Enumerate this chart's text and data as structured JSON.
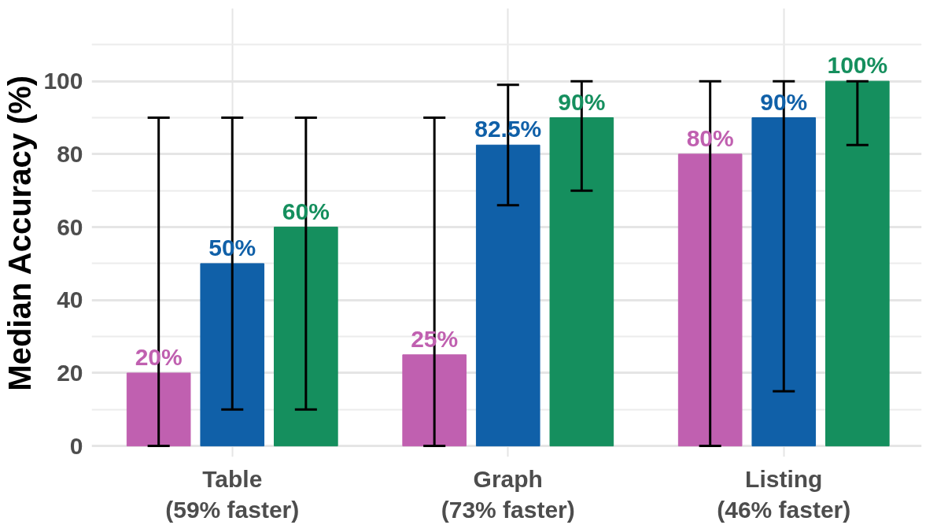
{
  "chart_data": {
    "type": "bar",
    "ylabel": "Median Accuracy (%)",
    "categories": [
      "Table\n(59% faster)",
      "Graph\n(73% faster)",
      "Listing\n(46% faster)"
    ],
    "series": [
      {
        "color": "#c060b0",
        "values": [
          20,
          25,
          80
        ],
        "errors": [
          [
            0,
            90
          ],
          [
            0,
            90
          ],
          [
            0,
            100
          ]
        ],
        "value_labels": [
          "20%",
          "25%",
          "80%"
        ]
      },
      {
        "color": "#1060a8",
        "values": [
          50,
          82.5,
          90
        ],
        "errors": [
          [
            10,
            90
          ],
          [
            66,
            99
          ],
          [
            15,
            100
          ]
        ],
        "value_labels": [
          "50%",
          "82.5%",
          "90%"
        ]
      },
      {
        "color": "#158f5e",
        "values": [
          60,
          90,
          100
        ],
        "errors": [
          [
            10,
            90
          ],
          [
            70,
            100
          ],
          [
            82.5,
            100
          ]
        ],
        "value_labels": [
          "60%",
          "90%",
          "100%"
        ]
      }
    ],
    "ylim": [
      -3,
      120
    ],
    "yticks": [
      0,
      20,
      40,
      60,
      80,
      100
    ],
    "grid": true
  }
}
